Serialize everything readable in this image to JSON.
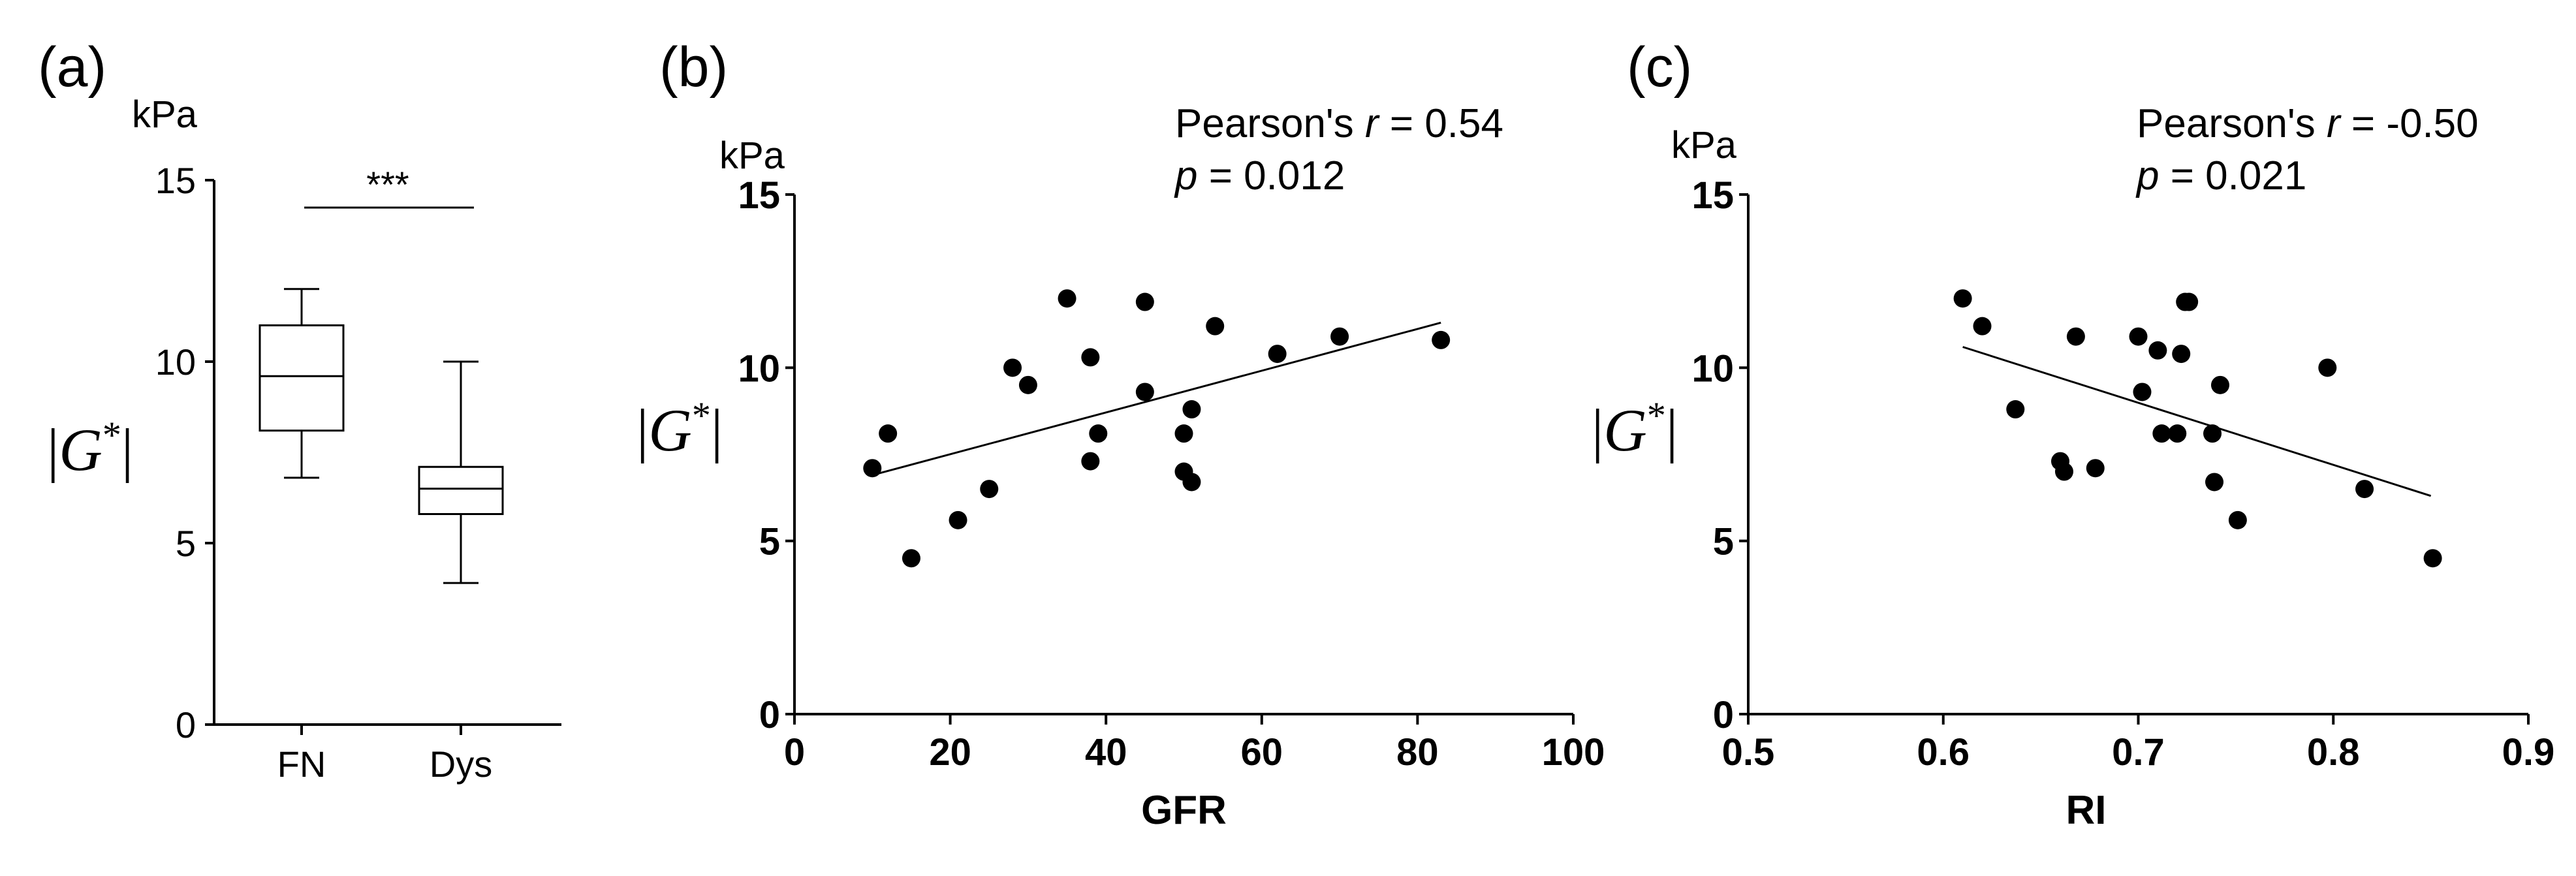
{
  "chart_data": [
    {
      "panel": "(a)",
      "type": "box",
      "unit": "kPa",
      "ylabel": "|G*|",
      "ylim": [
        0,
        15
      ],
      "yticks": [
        "0",
        "5",
        "10",
        "15"
      ],
      "categories": [
        "FN",
        "Dys"
      ],
      "boxes": [
        {
          "name": "FN",
          "min": 6.8,
          "q1": 8.1,
          "median": 9.6,
          "q3": 11.0,
          "max": 12.0
        },
        {
          "name": "Dys",
          "min": 3.9,
          "q1": 5.8,
          "median": 6.5,
          "q3": 7.1,
          "max": 10.0
        }
      ],
      "significance": "***"
    },
    {
      "panel": "(b)",
      "type": "scatter",
      "unit": "kPa",
      "ylabel": "|G*|",
      "xlabel": "GFR",
      "xlim": [
        0,
        100
      ],
      "ylim": [
        0,
        15
      ],
      "xticks": [
        "0",
        "20",
        "40",
        "60",
        "80",
        "100"
      ],
      "yticks": [
        "0",
        "5",
        "10",
        "15"
      ],
      "stat_line1": "Pearson's r = 0.54",
      "stat_line2": "p = 0.012",
      "fit": {
        "x": [
          10,
          83
        ],
        "y": [
          6.9,
          11.3
        ]
      },
      "points": {
        "x": [
          10,
          12,
          15,
          21,
          25,
          28,
          30,
          35,
          38,
          39,
          38,
          45,
          45,
          50,
          50,
          51,
          51,
          54,
          62,
          70,
          83
        ],
        "y": [
          7.1,
          8.1,
          4.5,
          5.6,
          6.5,
          10.0,
          9.5,
          12.0,
          10.3,
          8.1,
          7.3,
          9.3,
          11.9,
          8.1,
          7.0,
          6.7,
          8.8,
          11.2,
          10.4,
          10.9,
          10.8
        ]
      }
    },
    {
      "panel": "(c)",
      "type": "scatter",
      "unit": "kPa",
      "ylabel": "|G*|",
      "xlabel": "RI",
      "xlim": [
        0.5,
        0.9
      ],
      "ylim": [
        0,
        15
      ],
      "xticks": [
        "0.5",
        "0.6",
        "0.7",
        "0.8",
        "0.9"
      ],
      "yticks": [
        "0",
        "5",
        "10",
        "15"
      ],
      "stat_line1": "Pearson's r = -0.50",
      "stat_line2": "p = 0.021",
      "fit": {
        "x": [
          0.61,
          0.85
        ],
        "y": [
          10.6,
          6.3
        ]
      },
      "points": {
        "x": [
          0.61,
          0.62,
          0.637,
          0.66,
          0.662,
          0.668,
          0.678,
          0.7,
          0.702,
          0.71,
          0.712,
          0.72,
          0.722,
          0.724,
          0.726,
          0.738,
          0.739,
          0.742,
          0.751,
          0.797,
          0.816,
          0.851
        ],
        "y": [
          12.0,
          11.2,
          8.8,
          7.3,
          7.0,
          10.9,
          7.1,
          10.9,
          9.3,
          10.5,
          8.1,
          8.1,
          10.4,
          11.9,
          11.9,
          8.1,
          6.7,
          9.5,
          5.6,
          10.0,
          6.5,
          4.5
        ]
      }
    }
  ]
}
